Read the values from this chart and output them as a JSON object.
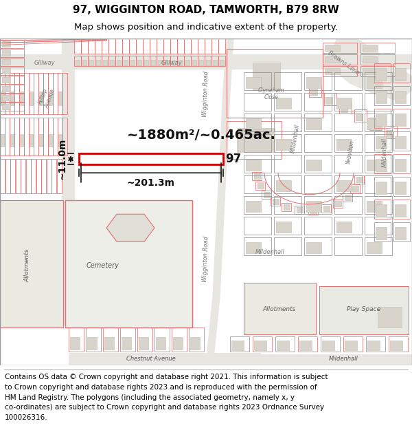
{
  "title_line1": "97, WIGGINTON ROAD, TAMWORTH, B79 8RW",
  "title_line2": "Map shows position and indicative extent of the property.",
  "footer_lines": [
    "Contains OS data © Crown copyright and database right 2021. This information is subject",
    "to Crown copyright and database rights 2023 and is reproduced with the permission of",
    "HM Land Registry. The polygons (including the associated geometry, namely x, y",
    "co-ordinates) are subject to Crown copyright and database rights 2023 Ordnance Survey",
    "100026316."
  ],
  "area_label": "~1880m²/~0.465ac.",
  "width_label": "~201.3m",
  "height_label": "~11.0m",
  "property_number": "97",
  "bg_color": "#faf9f7",
  "road_fill": "#e8e6e0",
  "plot_edge": "#e07070",
  "plot_edge_light": "#f0a0a0",
  "building_fill": "#d8d4cc",
  "building_edge": "#c0bcb4",
  "property_rect_color": "#cc0000",
  "annotation_color": "#111111",
  "title_fontsize": 11,
  "subtitle_fontsize": 9.5,
  "footer_fontsize": 7.5,
  "area_fontsize": 14,
  "dim_fontsize": 10,
  "label_fontsize": 6.5
}
